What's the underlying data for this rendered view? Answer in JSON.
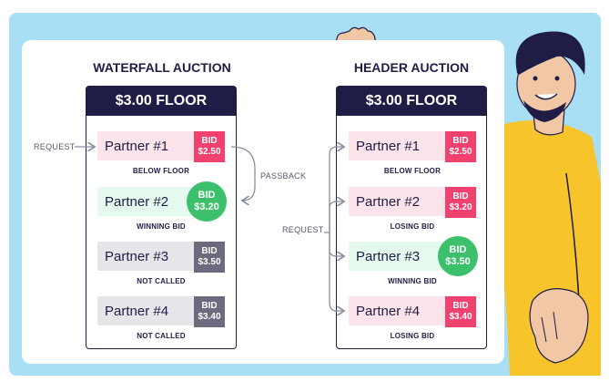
{
  "waterfall": {
    "title": "WATERFALL AUCTION",
    "floor": "$3.00 FLOOR",
    "request_label": "REQUEST",
    "passback_label": "PASSBACK",
    "rows": [
      {
        "partner": "Partner #1",
        "bid_word": "BID",
        "bid": "$2.50",
        "caption": "BELOW FLOOR",
        "row_color": "#fde3ea",
        "bid_color": "#f0416f"
      },
      {
        "partner": "Partner #2",
        "bid_word": "BID",
        "bid": "$3.20",
        "caption": "WINNING BID",
        "row_color": "#e6f9ee",
        "bid_color": "#3dc06c"
      },
      {
        "partner": "Partner #3",
        "bid_word": "BID",
        "bid": "$3.50",
        "caption": "NOT CALLED",
        "row_color": "#e6e6ea",
        "bid_color": "#6e6a7e"
      },
      {
        "partner": "Partner #4",
        "bid_word": "BID",
        "bid": "$3.40",
        "caption": "NOT CALLED",
        "row_color": "#e6e6ea",
        "bid_color": "#6e6a7e"
      }
    ]
  },
  "header": {
    "title": "HEADER AUCTION",
    "floor": "$3.00 FLOOR",
    "request_label": "REQUEST",
    "rows": [
      {
        "partner": "Partner #1",
        "bid_word": "BID",
        "bid": "$2.50",
        "caption": "BELOW FLOOR",
        "row_color": "#fde3ea",
        "bid_color": "#f0416f"
      },
      {
        "partner": "Partner #2",
        "bid_word": "BID",
        "bid": "$3.20",
        "caption": "LOSING BID",
        "row_color": "#fde3ea",
        "bid_color": "#f0416f"
      },
      {
        "partner": "Partner #3",
        "bid_word": "BID",
        "bid": "$3.50",
        "caption": "WINNING BID",
        "row_color": "#e6f9ee",
        "bid_color": "#3dc06c"
      },
      {
        "partner": "Partner #4",
        "bid_word": "BID",
        "bid": "$3.40",
        "caption": "LOSING BID",
        "row_color": "#fde3ea",
        "bid_color": "#f0416f"
      }
    ]
  },
  "colors": {
    "navy": "#1f1d45",
    "sky": "#a9dff5",
    "arrow": "#8a8f9e"
  }
}
